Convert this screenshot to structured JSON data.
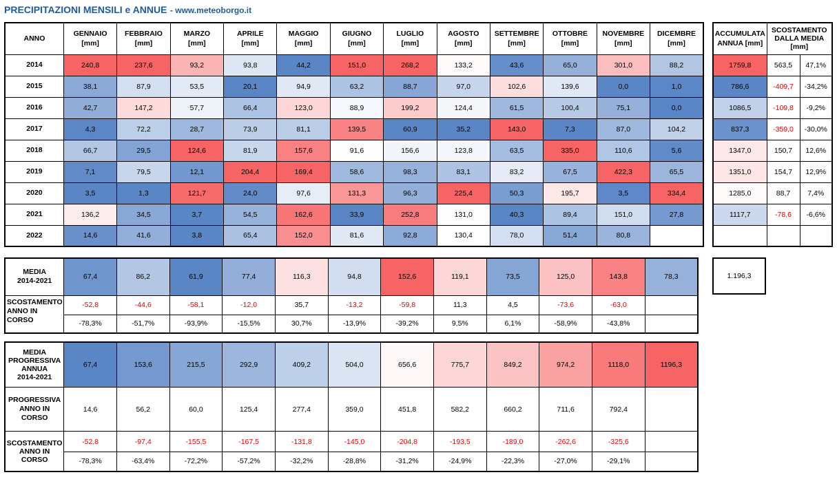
{
  "title": "PRECIPITAZIONI MENSILI e ANNUE",
  "website": "- www.meteoborgo.it",
  "months": [
    "GENNAIO",
    "FEBBRAIO",
    "MARZO",
    "APRILE",
    "MAGGIO",
    "GIUGNO",
    "LUGLIO",
    "AGOSTO",
    "SETTEMBRE",
    "OTTOBRE",
    "NOVEMBRE",
    "DICEMBRE"
  ],
  "unit": "[mm]",
  "year_header": "ANNO",
  "accum_header": [
    "ACCUMULATA",
    "ANNUA [mm]"
  ],
  "scost_header": [
    "SCOSTAMENTO",
    "DALLA MEDIA",
    "[mm]"
  ],
  "years": [
    {
      "year": "2014",
      "values": [
        "240,8",
        "237,6",
        "93,2",
        "93,8",
        "44,2",
        "151,0",
        "268,2",
        "133,2",
        "43,6",
        "65,0",
        "301,0",
        "88,2"
      ],
      "total": "1759,8",
      "dev_mm": "563,5",
      "dev_pct": "47,1%"
    },
    {
      "year": "2015",
      "values": [
        "38,1",
        "87,9",
        "53,5",
        "20,1",
        "94,9",
        "63,2",
        "88,7",
        "97,0",
        "102,6",
        "139,6",
        "0,0",
        "1,0"
      ],
      "total": "786,6",
      "dev_mm": "-409,7",
      "dev_pct": "-34,2%"
    },
    {
      "year": "2016",
      "values": [
        "42,7",
        "147,2",
        "57,7",
        "66,4",
        "123,0",
        "88,9",
        "199,2",
        "124,4",
        "61,5",
        "100,4",
        "75,1",
        "0,0"
      ],
      "total": "1086,5",
      "dev_mm": "-109,8",
      "dev_pct": "-9,2%"
    },
    {
      "year": "2017",
      "values": [
        "4,3",
        "72,2",
        "28,7",
        "73,9",
        "81,1",
        "139,5",
        "60,9",
        "35,2",
        "143,0",
        "7,3",
        "87,0",
        "104,2"
      ],
      "total": "837,3",
      "dev_mm": "-359,0",
      "dev_pct": "-30,0%"
    },
    {
      "year": "2018",
      "values": [
        "66,7",
        "29,5",
        "124,6",
        "81,9",
        "157,6",
        "91,6",
        "156,6",
        "123,8",
        "63,5",
        "335,0",
        "110,6",
        "5,6"
      ],
      "total": "1347,0",
      "dev_mm": "150,7",
      "dev_pct": "12,6%"
    },
    {
      "year": "2019",
      "values": [
        "7,1",
        "79,5",
        "12,1",
        "204,4",
        "169,4",
        "58,6",
        "98,3",
        "83,1",
        "83,2",
        "67,5",
        "422,3",
        "65,5"
      ],
      "total": "1351,0",
      "dev_mm": "154,7",
      "dev_pct": "12,9%"
    },
    {
      "year": "2020",
      "values": [
        "3,5",
        "1,3",
        "121,7",
        "24,0",
        "97,6",
        "131,3",
        "96,3",
        "225,4",
        "50,3",
        "195,7",
        "3,5",
        "334,4"
      ],
      "total": "1285,0",
      "dev_mm": "88,7",
      "dev_pct": "7,4%"
    },
    {
      "year": "2021",
      "values": [
        "136,2",
        "34,5",
        "3,7",
        "54,5",
        "162,6",
        "33,9",
        "252,8",
        "131,0",
        "40,3",
        "89,4",
        "151,0",
        "27,8"
      ],
      "total": "1117,7",
      "dev_mm": "-78,6",
      "dev_pct": "-6,6%"
    },
    {
      "year": "2022",
      "values": [
        "14,6",
        "41,6",
        "3,8",
        "65,4",
        "152,0",
        "81,6",
        "92,8",
        "130,4",
        "78,0",
        "51,4",
        "80,8",
        ""
      ],
      "total": "",
      "dev_mm": "",
      "dev_pct": ""
    }
  ],
  "media": {
    "label": [
      "MEDIA",
      "2014-2021"
    ],
    "values": [
      "67,4",
      "86,2",
      "61,9",
      "77,4",
      "116,3",
      "94,8",
      "152,6",
      "119,1",
      "73,5",
      "125,0",
      "143,8",
      "78,3"
    ],
    "total": "1.196,3"
  },
  "scost_anno": {
    "label": [
      "SCOSTAMENTO",
      "ANNO IN",
      "CORSO"
    ],
    "mm": [
      "-52,8",
      "-44,6",
      "-58,1",
      "-12,0",
      "35,7",
      "-13,2",
      "-59,8",
      "11,3",
      "4,5",
      "-73,6",
      "-63,0",
      ""
    ],
    "pct": [
      "-78,3%",
      "-51,7%",
      "-93,9%",
      "-15,5%",
      "30,7%",
      "-13,9%",
      "-39,2%",
      "9,5%",
      "6,1%",
      "-58,9%",
      "-43,8%",
      ""
    ]
  },
  "media_prog": {
    "label": [
      "MEDIA",
      "PROGRESSIVA",
      "ANNUA",
      "2014-2021"
    ],
    "values": [
      "67,4",
      "153,6",
      "215,5",
      "292,9",
      "409,2",
      "504,0",
      "656,6",
      "775,7",
      "849,2",
      "974,2",
      "1118,0",
      "1196,3"
    ]
  },
  "prog_anno": {
    "label": [
      "PROGRESSIVA",
      "ANNO IN",
      "CORSO"
    ],
    "values": [
      "14,6",
      "56,2",
      "60,0",
      "125,4",
      "277,4",
      "359,0",
      "451,8",
      "582,2",
      "660,2",
      "711,6",
      "792,4",
      ""
    ]
  },
  "scost_prog": {
    "label": [
      "SCOSTAMENTO",
      "ANNO IN",
      "CORSO"
    ],
    "mm": [
      "-52,8",
      "-97,4",
      "-155,5",
      "-167,5",
      "-131,8",
      "-145,0",
      "-204,8",
      "-193,5",
      "-189,0",
      "-262,6",
      "-325,6",
      ""
    ],
    "pct": [
      "-78,3%",
      "-63,4%",
      "-72,2%",
      "-57,2%",
      "-32,2%",
      "-28,8%",
      "-31,2%",
      "-24,9%",
      "-22,3%",
      "-27,0%",
      "-29,1%",
      ""
    ]
  },
  "colors": {
    "blue_strong": "#5b86c6",
    "white": "#ffffff",
    "red_strong": "#f76466",
    "negative_text": "#e00000",
    "title": "#1f5b9a"
  }
}
